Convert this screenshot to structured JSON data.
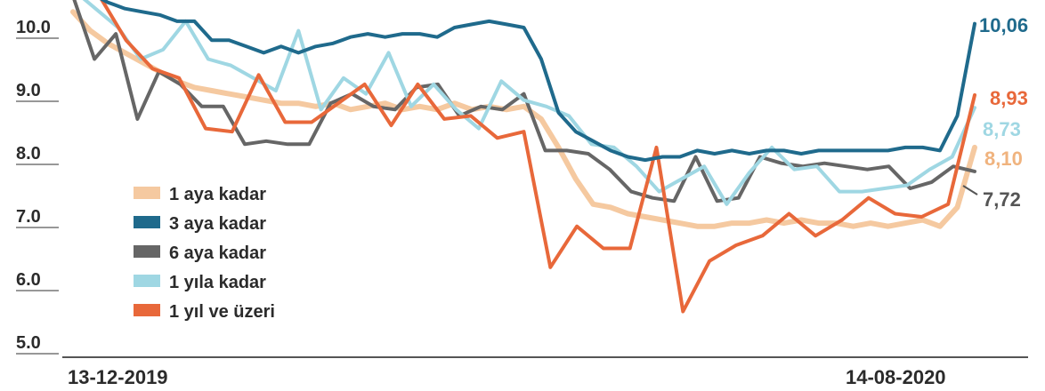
{
  "chart_data": {
    "type": "line",
    "title": "",
    "xlabel": "",
    "ylabel": "",
    "ylim": [
      5.0,
      10.5
    ],
    "y_ticks": [
      "5.0",
      "6.0",
      "7.0",
      "8.0",
      "9.0",
      "10.0"
    ],
    "y_tick_values": [
      5.0,
      6.0,
      7.0,
      8.0,
      9.0,
      10.0
    ],
    "x_start_label": "13-12-2019",
    "x_end_label": "14-08-2020",
    "grid": false,
    "legend_position": "bottom-left",
    "series": [
      {
        "name": "1 aya kadar",
        "color": "#f5c9a0",
        "end_label": "8,10",
        "values": [
          10.25,
          9.95,
          9.75,
          9.6,
          9.45,
          9.3,
          9.15,
          9.05,
          9.0,
          8.95,
          8.9,
          8.85,
          8.8,
          8.8,
          8.75,
          8.8,
          8.7,
          8.75,
          8.8,
          8.7,
          8.75,
          8.7,
          8.8,
          8.7,
          8.75,
          8.7,
          8.75,
          8.55,
          8.1,
          7.6,
          7.2,
          7.15,
          7.05,
          7.0,
          6.95,
          6.9,
          6.85,
          6.85,
          6.9,
          6.9,
          6.95,
          6.9,
          6.95,
          6.9,
          6.9,
          6.85,
          6.9,
          6.85,
          6.9,
          6.95,
          6.85,
          7.15,
          8.1
        ]
      },
      {
        "name": "3 aya kadar",
        "color": "#1f6a8c",
        "end_label": "10,06",
        "values": [
          10.7,
          10.55,
          10.4,
          10.3,
          10.25,
          10.2,
          10.1,
          10.1,
          9.8,
          9.8,
          9.7,
          9.6,
          9.7,
          9.6,
          9.7,
          9.75,
          9.85,
          9.9,
          9.85,
          9.9,
          9.9,
          9.85,
          10.0,
          10.05,
          10.1,
          10.05,
          10.0,
          9.5,
          8.65,
          8.35,
          8.2,
          8.05,
          7.95,
          7.9,
          7.95,
          7.95,
          8.05,
          8.0,
          8.05,
          8.0,
          8.05,
          8.05,
          8.0,
          8.05,
          8.05,
          8.05,
          8.05,
          8.05,
          8.1,
          8.1,
          8.05,
          8.6,
          10.06
        ]
      },
      {
        "name": "6 aya kadar",
        "color": "#666666",
        "end_label": "7,72",
        "values": [
          10.5,
          9.5,
          9.9,
          8.55,
          9.3,
          9.1,
          8.75,
          8.75,
          8.15,
          8.2,
          8.15,
          8.15,
          8.8,
          8.95,
          8.75,
          8.7,
          9.05,
          9.1,
          8.6,
          8.75,
          8.7,
          8.95,
          8.05,
          8.05,
          8.0,
          7.75,
          7.4,
          7.3,
          7.25,
          7.95,
          7.25,
          7.3,
          7.95,
          7.85,
          7.8,
          7.85,
          7.8,
          7.75,
          7.8,
          7.45,
          7.55,
          7.8,
          7.72
        ]
      },
      {
        "name": "1 yıla kadar",
        "color": "#9fd7e3",
        "end_label": "8,73",
        "values": [
          10.6,
          10.3,
          10.0,
          9.5,
          9.65,
          10.1,
          9.5,
          9.4,
          9.2,
          9.0,
          9.95,
          8.7,
          9.2,
          8.95,
          9.6,
          8.75,
          9.1,
          8.7,
          8.4,
          9.15,
          8.85,
          8.75,
          8.6,
          8.15,
          8.1,
          7.8,
          7.4,
          7.6,
          7.8,
          7.2,
          7.7,
          8.1,
          7.75,
          7.8,
          7.4,
          7.4,
          7.45,
          7.5,
          7.75,
          7.95,
          8.73
        ]
      },
      {
        "name": "1 yıl ve üzeri",
        "color": "#e8683a",
        "end_label": "8,93",
        "values": [
          10.6,
          10.5,
          9.8,
          9.35,
          9.2,
          8.4,
          8.35,
          9.25,
          8.5,
          8.5,
          8.8,
          9.1,
          8.45,
          9.1,
          8.55,
          8.6,
          8.25,
          8.35,
          6.2,
          6.85,
          6.5,
          6.5,
          8.1,
          5.5,
          6.3,
          6.55,
          6.7,
          7.05,
          6.7,
          6.95,
          7.3,
          7.05,
          7.0,
          7.2,
          8.93
        ]
      }
    ]
  }
}
